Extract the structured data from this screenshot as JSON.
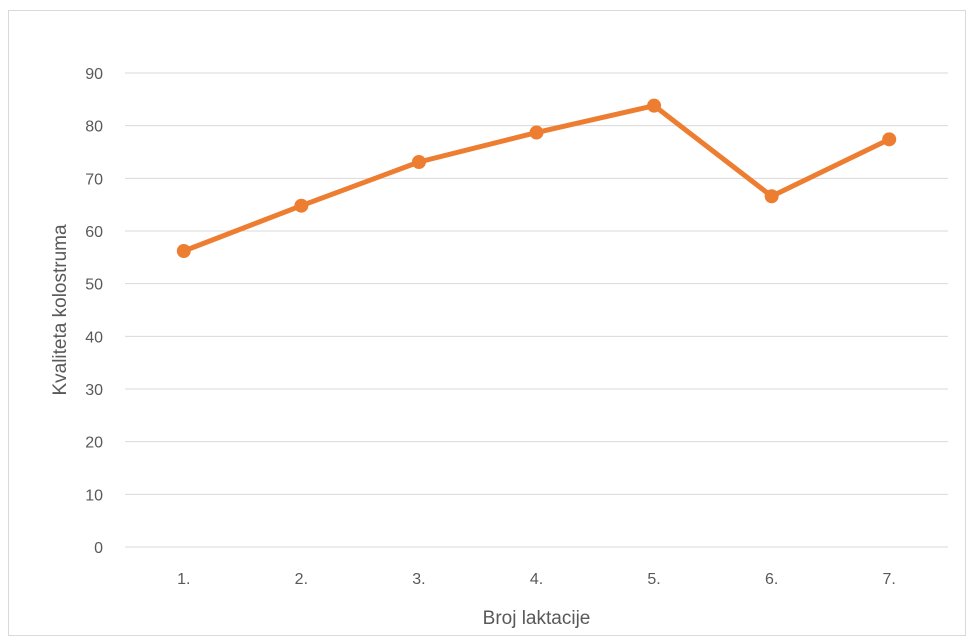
{
  "chart_data": {
    "type": "line",
    "title": "",
    "xlabel": "Broj laktacije",
    "ylabel": "Kvaliteta kolostruma",
    "categories": [
      "1.",
      "2.",
      "3.",
      "4.",
      "5.",
      "6.",
      "7."
    ],
    "series": [
      {
        "values": [
          56.2,
          64.8,
          73.1,
          78.7,
          83.8,
          66.6,
          77.4
        ],
        "color": "#ED7D31"
      }
    ],
    "ylim": [
      0,
      90
    ],
    "yticks": [
      0,
      10,
      20,
      30,
      40,
      50,
      60,
      70,
      80,
      90
    ],
    "grid": "horizontal",
    "legend": "none",
    "gridline_color": "#d9d9d9"
  }
}
